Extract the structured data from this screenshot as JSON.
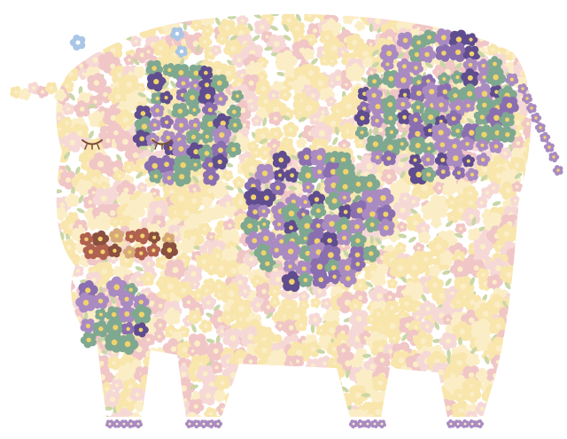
{
  "illustration": {
    "subject": "cow-made-of-flowers",
    "colors": {
      "background": "#ffffff",
      "cream": "#f8e6ad",
      "pale_yellow": "#fbeec7",
      "pale_pink": "#f6d9d6",
      "pink": "#f1c6c6",
      "lilac": "#a98bc2",
      "purple": "#8a6fb0",
      "dark_purple": "#5f4d8f",
      "sage": "#7fa890",
      "dark_sage": "#5f8a74",
      "blue_accent": "#a9c6e6",
      "nose_rust": "#b0614f",
      "nose_brown": "#8a4f3f",
      "nose_tan": "#d6a87a",
      "eye_brown": "#7a4a3a",
      "leaf": "#c9d6a6",
      "center_yellow": "#f2d36b"
    },
    "icons": {
      "flower": "flower-icon",
      "leaf": "leaf-icon",
      "eye": "closed-eye-icon"
    }
  }
}
